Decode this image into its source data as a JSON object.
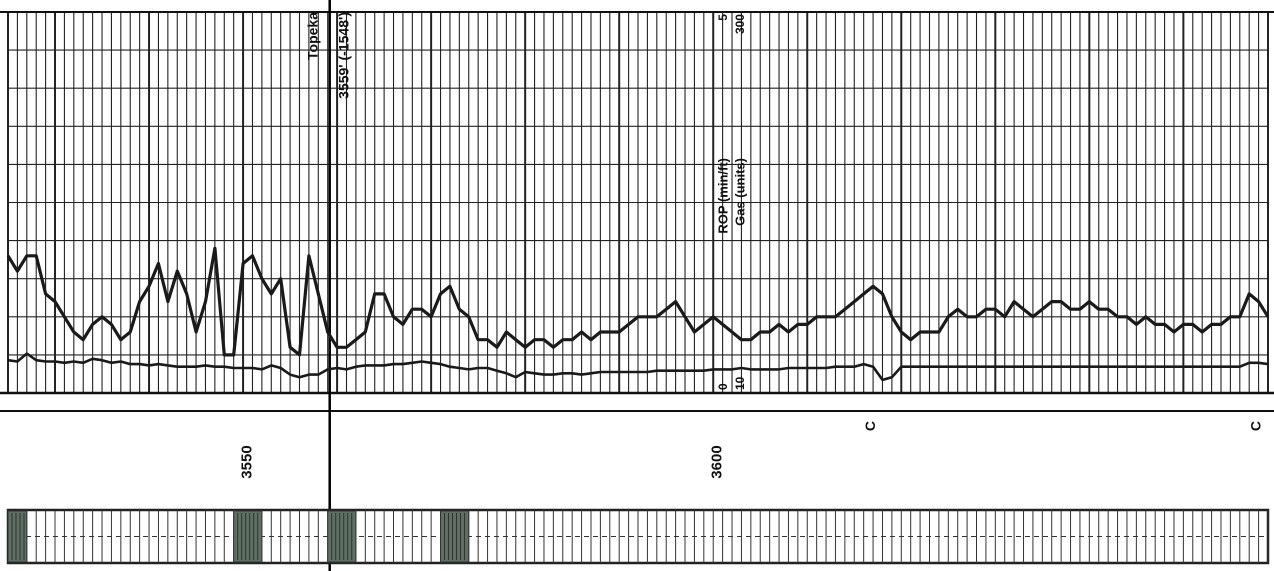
{
  "chart_data": {
    "type": "line",
    "orientation": "depth along horizontal axis (rotated mud log)",
    "x_unit": "ft",
    "xlim": [
      3525,
      3659
    ],
    "depth_ticks": [
      3550,
      3600
    ],
    "grid": true,
    "formation_top": {
      "name": "Topeka",
      "depth_label": "3559' (-1548')",
      "depth": 3559
    },
    "curve_labels": [
      {
        "name": "ROP (min/ft)",
        "min_label": "0",
        "max_label": "5"
      },
      {
        "name": "Gas (units)",
        "min_label": "10",
        "max_label": "300"
      }
    ],
    "markers": [
      {
        "label": "C",
        "depth": 3617
      },
      {
        "label": "C",
        "depth": 3658
      }
    ],
    "series": [
      {
        "name": "ROP (min/ft)",
        "ylim": [
          0,
          5
        ],
        "points": [
          [
            3525,
            1.8
          ],
          [
            3526,
            1.6
          ],
          [
            3527,
            1.8
          ],
          [
            3528,
            1.8
          ],
          [
            3529,
            1.3
          ],
          [
            3530,
            1.2
          ],
          [
            3531,
            1.0
          ],
          [
            3532,
            0.8
          ],
          [
            3533,
            0.7
          ],
          [
            3534,
            0.9
          ],
          [
            3535,
            1.0
          ],
          [
            3536,
            0.9
          ],
          [
            3537,
            0.7
          ],
          [
            3538,
            0.8
          ],
          [
            3539,
            1.2
          ],
          [
            3540,
            1.4
          ],
          [
            3541,
            1.7
          ],
          [
            3542,
            1.2
          ],
          [
            3543,
            1.6
          ],
          [
            3544,
            1.3
          ],
          [
            3545,
            0.8
          ],
          [
            3546,
            1.2
          ],
          [
            3547,
            1.9
          ],
          [
            3548,
            0.5
          ],
          [
            3549,
            0.5
          ],
          [
            3550,
            1.7
          ],
          [
            3551,
            1.8
          ],
          [
            3552,
            1.5
          ],
          [
            3553,
            1.3
          ],
          [
            3554,
            1.5
          ],
          [
            3555,
            0.6
          ],
          [
            3556,
            0.5
          ],
          [
            3557,
            1.8
          ],
          [
            3558,
            1.3
          ],
          [
            3559,
            0.8
          ],
          [
            3560,
            0.6
          ],
          [
            3561,
            0.6
          ],
          [
            3562,
            0.7
          ],
          [
            3563,
            0.8
          ],
          [
            3564,
            1.3
          ],
          [
            3565,
            1.3
          ],
          [
            3566,
            1.0
          ],
          [
            3567,
            0.9
          ],
          [
            3568,
            1.1
          ],
          [
            3569,
            1.1
          ],
          [
            3570,
            1.0
          ],
          [
            3571,
            1.3
          ],
          [
            3572,
            1.4
          ],
          [
            3573,
            1.1
          ],
          [
            3574,
            1.0
          ],
          [
            3575,
            0.7
          ],
          [
            3576,
            0.7
          ],
          [
            3577,
            0.6
          ],
          [
            3578,
            0.8
          ],
          [
            3579,
            0.7
          ],
          [
            3580,
            0.6
          ],
          [
            3581,
            0.7
          ],
          [
            3582,
            0.7
          ],
          [
            3583,
            0.6
          ],
          [
            3584,
            0.7
          ],
          [
            3585,
            0.7
          ],
          [
            3586,
            0.8
          ],
          [
            3587,
            0.7
          ],
          [
            3588,
            0.8
          ],
          [
            3589,
            0.8
          ],
          [
            3590,
            0.8
          ],
          [
            3591,
            0.9
          ],
          [
            3592,
            1.0
          ],
          [
            3593,
            1.0
          ],
          [
            3594,
            1.0
          ],
          [
            3595,
            1.1
          ],
          [
            3596,
            1.2
          ],
          [
            3597,
            1.0
          ],
          [
            3598,
            0.8
          ],
          [
            3599,
            0.9
          ],
          [
            3600,
            1.0
          ],
          [
            3601,
            0.9
          ],
          [
            3602,
            0.8
          ],
          [
            3603,
            0.7
          ],
          [
            3604,
            0.7
          ],
          [
            3605,
            0.8
          ],
          [
            3606,
            0.8
          ],
          [
            3607,
            0.9
          ],
          [
            3608,
            0.8
          ],
          [
            3609,
            0.9
          ],
          [
            3610,
            0.9
          ],
          [
            3611,
            1.0
          ],
          [
            3612,
            1.0
          ],
          [
            3613,
            1.0
          ],
          [
            3614,
            1.1
          ],
          [
            3615,
            1.2
          ],
          [
            3616,
            1.3
          ],
          [
            3617,
            1.4
          ],
          [
            3618,
            1.3
          ],
          [
            3619,
            1.0
          ],
          [
            3620,
            0.8
          ],
          [
            3621,
            0.7
          ],
          [
            3622,
            0.8
          ],
          [
            3623,
            0.8
          ],
          [
            3624,
            0.8
          ],
          [
            3625,
            1.0
          ],
          [
            3626,
            1.1
          ],
          [
            3627,
            1.0
          ],
          [
            3628,
            1.0
          ],
          [
            3629,
            1.1
          ],
          [
            3630,
            1.1
          ],
          [
            3631,
            1.0
          ],
          [
            3632,
            1.2
          ],
          [
            3633,
            1.1
          ],
          [
            3634,
            1.0
          ],
          [
            3635,
            1.1
          ],
          [
            3636,
            1.2
          ],
          [
            3637,
            1.2
          ],
          [
            3638,
            1.1
          ],
          [
            3639,
            1.1
          ],
          [
            3640,
            1.2
          ],
          [
            3641,
            1.1
          ],
          [
            3642,
            1.1
          ],
          [
            3643,
            1.0
          ],
          [
            3644,
            1.0
          ],
          [
            3645,
            0.9
          ],
          [
            3646,
            1.0
          ],
          [
            3647,
            0.9
          ],
          [
            3648,
            0.9
          ],
          [
            3649,
            0.8
          ],
          [
            3650,
            0.9
          ],
          [
            3651,
            0.9
          ],
          [
            3652,
            0.8
          ],
          [
            3653,
            0.9
          ],
          [
            3654,
            0.9
          ],
          [
            3655,
            1.0
          ],
          [
            3656,
            1.0
          ],
          [
            3657,
            1.3
          ],
          [
            3658,
            1.2
          ],
          [
            3659,
            1.0
          ]
        ]
      },
      {
        "name": "Gas (units)",
        "ylim": [
          10,
          300
        ],
        "points": [
          [
            3525,
            35
          ],
          [
            3526,
            34
          ],
          [
            3527,
            40
          ],
          [
            3528,
            35
          ],
          [
            3529,
            34
          ],
          [
            3530,
            34
          ],
          [
            3531,
            33
          ],
          [
            3532,
            34
          ],
          [
            3533,
            33
          ],
          [
            3534,
            36
          ],
          [
            3535,
            35
          ],
          [
            3536,
            33
          ],
          [
            3537,
            34
          ],
          [
            3538,
            32
          ],
          [
            3539,
            32
          ],
          [
            3540,
            31
          ],
          [
            3541,
            32
          ],
          [
            3542,
            31
          ],
          [
            3543,
            30
          ],
          [
            3544,
            30
          ],
          [
            3545,
            30
          ],
          [
            3546,
            31
          ],
          [
            3547,
            30
          ],
          [
            3548,
            30
          ],
          [
            3549,
            29
          ],
          [
            3550,
            29
          ],
          [
            3551,
            29
          ],
          [
            3552,
            28
          ],
          [
            3553,
            31
          ],
          [
            3554,
            29
          ],
          [
            3555,
            24
          ],
          [
            3556,
            22
          ],
          [
            3557,
            24
          ],
          [
            3558,
            24
          ],
          [
            3559,
            28
          ],
          [
            3560,
            29
          ],
          [
            3561,
            28
          ],
          [
            3562,
            30
          ],
          [
            3563,
            31
          ],
          [
            3564,
            31
          ],
          [
            3565,
            31
          ],
          [
            3566,
            32
          ],
          [
            3567,
            32
          ],
          [
            3568,
            33
          ],
          [
            3569,
            34
          ],
          [
            3570,
            33
          ],
          [
            3571,
            32
          ],
          [
            3572,
            30
          ],
          [
            3573,
            29
          ],
          [
            3574,
            28
          ],
          [
            3575,
            29
          ],
          [
            3576,
            29
          ],
          [
            3577,
            27
          ],
          [
            3578,
            25
          ],
          [
            3579,
            22
          ],
          [
            3580,
            26
          ],
          [
            3581,
            25
          ],
          [
            3582,
            24
          ],
          [
            3583,
            24
          ],
          [
            3584,
            25
          ],
          [
            3585,
            25
          ],
          [
            3586,
            24
          ],
          [
            3587,
            25
          ],
          [
            3588,
            26
          ],
          [
            3589,
            26
          ],
          [
            3590,
            26
          ],
          [
            3591,
            26
          ],
          [
            3592,
            26
          ],
          [
            3593,
            26
          ],
          [
            3594,
            27
          ],
          [
            3595,
            27
          ],
          [
            3596,
            27
          ],
          [
            3597,
            27
          ],
          [
            3598,
            27
          ],
          [
            3599,
            27
          ],
          [
            3600,
            28
          ],
          [
            3601,
            28
          ],
          [
            3602,
            28
          ],
          [
            3603,
            29
          ],
          [
            3604,
            28
          ],
          [
            3605,
            28
          ],
          [
            3606,
            28
          ],
          [
            3607,
            28
          ],
          [
            3608,
            29
          ],
          [
            3609,
            29
          ],
          [
            3610,
            29
          ],
          [
            3611,
            29
          ],
          [
            3612,
            29
          ],
          [
            3613,
            30
          ],
          [
            3614,
            30
          ],
          [
            3615,
            30
          ],
          [
            3616,
            32
          ],
          [
            3617,
            30
          ],
          [
            3618,
            20
          ],
          [
            3619,
            22
          ],
          [
            3620,
            30
          ],
          [
            3621,
            30
          ],
          [
            3622,
            30
          ],
          [
            3623,
            30
          ],
          [
            3624,
            30
          ],
          [
            3625,
            30
          ],
          [
            3626,
            30
          ],
          [
            3627,
            30
          ],
          [
            3628,
            30
          ],
          [
            3629,
            30
          ],
          [
            3630,
            30
          ],
          [
            3631,
            30
          ],
          [
            3632,
            30
          ],
          [
            3633,
            30
          ],
          [
            3634,
            30
          ],
          [
            3635,
            30
          ],
          [
            3636,
            30
          ],
          [
            3637,
            30
          ],
          [
            3638,
            30
          ],
          [
            3639,
            30
          ],
          [
            3640,
            30
          ],
          [
            3641,
            30
          ],
          [
            3642,
            30
          ],
          [
            3643,
            30
          ],
          [
            3644,
            30
          ],
          [
            3645,
            30
          ],
          [
            3646,
            30
          ],
          [
            3647,
            30
          ],
          [
            3648,
            30
          ],
          [
            3649,
            30
          ],
          [
            3650,
            30
          ],
          [
            3651,
            30
          ],
          [
            3652,
            30
          ],
          [
            3653,
            30
          ],
          [
            3654,
            30
          ],
          [
            3655,
            30
          ],
          [
            3656,
            30
          ],
          [
            3657,
            33
          ],
          [
            3658,
            33
          ],
          [
            3659,
            32
          ]
        ]
      }
    ],
    "lithology_track": {
      "dark_blocks": [
        [
          3525,
          3527
        ],
        [
          3549,
          3552
        ],
        [
          3559,
          3562
        ],
        [
          3571,
          3574
        ]
      ]
    }
  }
}
